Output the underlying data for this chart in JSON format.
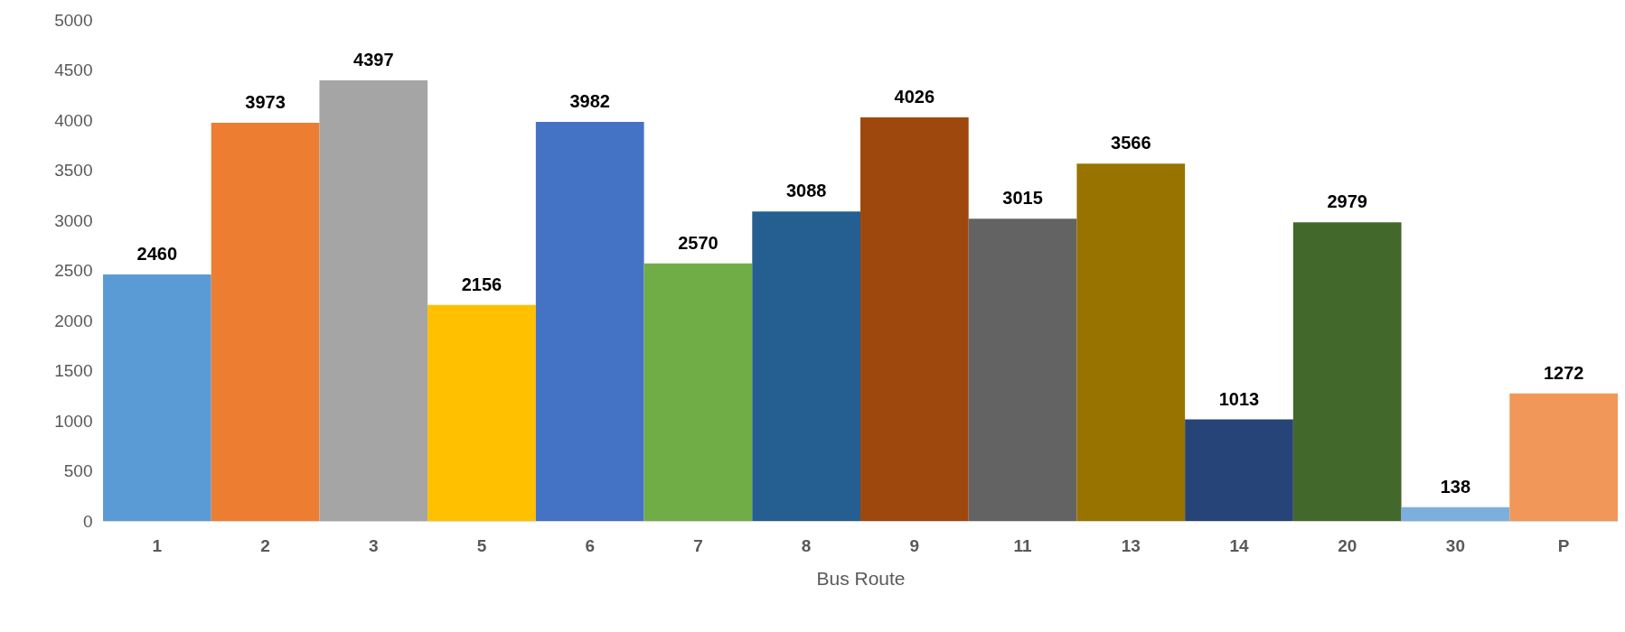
{
  "chart_data": {
    "type": "bar",
    "xlabel": "Bus Route",
    "categories": [
      "1",
      "2",
      "3",
      "5",
      "6",
      "7",
      "8",
      "9",
      "11",
      "13",
      "14",
      "20",
      "30",
      "P"
    ],
    "values": [
      2460,
      3973,
      4397,
      2156,
      3982,
      2570,
      3088,
      4026,
      3015,
      3566,
      1013,
      2979,
      138,
      1272
    ],
    "colors": [
      "#5b9bd5",
      "#ed7d31",
      "#a5a5a5",
      "#ffc000",
      "#4472c4",
      "#70ad47",
      "#255e91",
      "#9e480e",
      "#636363",
      "#997300",
      "#264478",
      "#43682b",
      "#7cafdd",
      "#f1975a"
    ],
    "ylim": [
      0,
      5000
    ],
    "yticks": [
      0,
      500,
      1000,
      1500,
      2000,
      2500,
      3000,
      3500,
      4000,
      4500,
      5000
    ],
    "data_labels": true
  }
}
